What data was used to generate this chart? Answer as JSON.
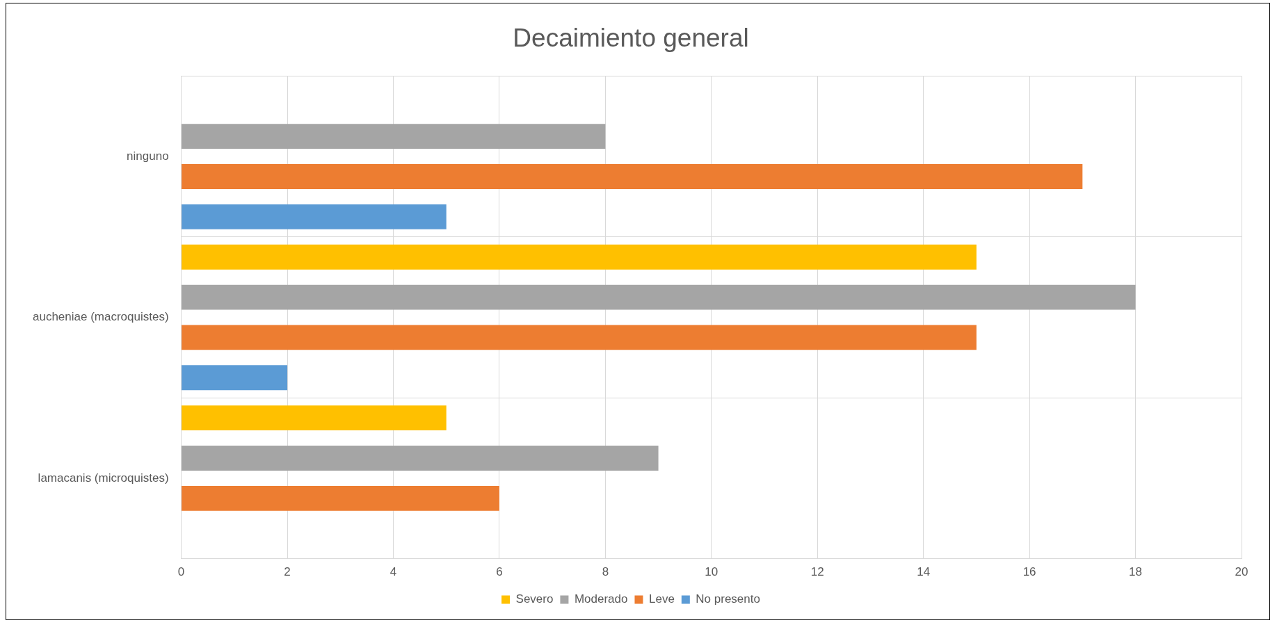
{
  "chart_data": {
    "type": "bar",
    "orientation": "horizontal",
    "title": "Decaimiento general",
    "categories": [
      "ninguno",
      "aucheniae (macroquistes)",
      "lamacanis (microquistes)"
    ],
    "series": [
      {
        "name": "Severo",
        "color": "#ffc000",
        "values": [
          0,
          15,
          5
        ]
      },
      {
        "name": "Moderado",
        "color": "#a5a5a5",
        "values": [
          8,
          18,
          9
        ]
      },
      {
        "name": "Leve",
        "color": "#ed7d31",
        "values": [
          17,
          15,
          6
        ]
      },
      {
        "name": "No presento",
        "color": "#5b9bd5",
        "values": [
          5,
          2,
          0
        ]
      }
    ],
    "xlim": [
      0,
      20
    ],
    "xticks": [
      0,
      2,
      4,
      6,
      8,
      10,
      12,
      14,
      16,
      18,
      20
    ],
    "grid": true,
    "legend": "bottom"
  }
}
